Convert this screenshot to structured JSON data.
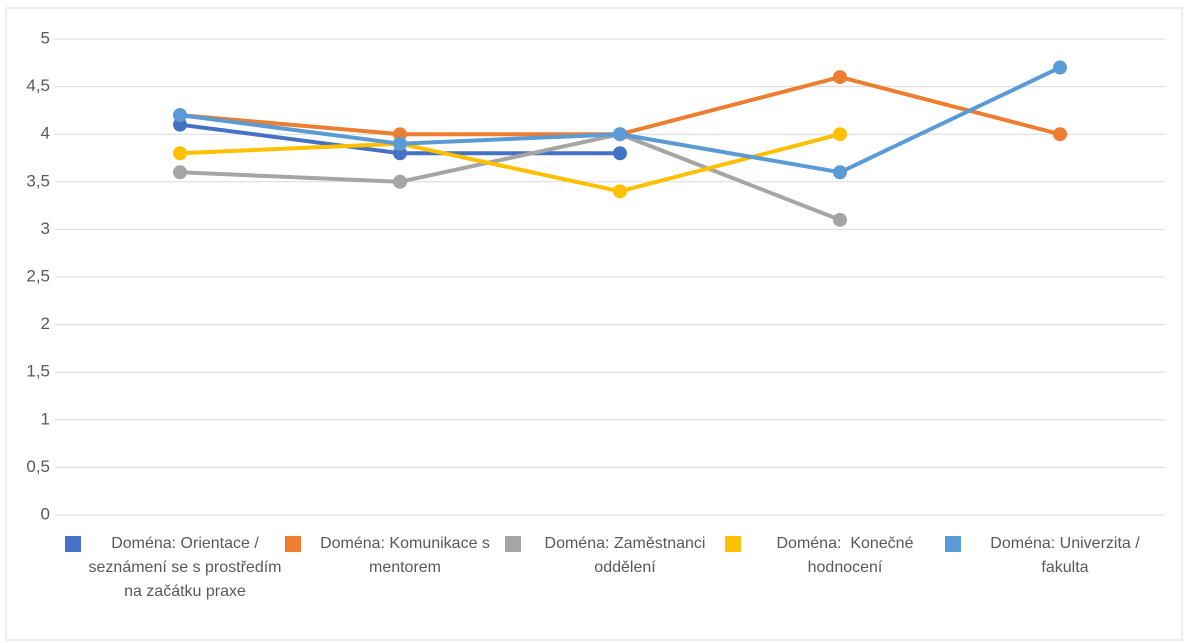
{
  "chart_data": {
    "type": "line",
    "categories": [
      null,
      null,
      null,
      null,
      null
    ],
    "series": [
      {
        "name": "Doména: Orientace / seznámení se s prostředím na začátku praxe",
        "color": "#4472c4",
        "values": [
          4.1,
          3.8,
          3.8,
          null,
          null
        ]
      },
      {
        "name": "Doména: Komunikace s mentorem",
        "color": "#ed7d31",
        "values": [
          4.2,
          4.0,
          4.0,
          4.6,
          4.0
        ]
      },
      {
        "name": "Doména: Zaměstnanci oddělení",
        "color": "#a5a5a5",
        "values": [
          3.6,
          3.5,
          4.0,
          3.1,
          null
        ]
      },
      {
        "name": "Doména:  Konečné hodnocení",
        "color": "#ffc000",
        "values": [
          3.8,
          3.9,
          3.4,
          4.0,
          null
        ]
      },
      {
        "name": "Doména: Univerzita / fakulta",
        "color": "#5b9bd5",
        "values": [
          4.2,
          3.9,
          4.0,
          3.6,
          4.7
        ]
      }
    ],
    "ylim": [
      0,
      5
    ],
    "yticks": [
      0,
      {
        "value": 0.5,
        "label": "0,5"
      },
      1,
      {
        "value": 1.5,
        "label": "1,5"
      },
      2,
      {
        "value": 2.5,
        "label": "2,5"
      },
      3,
      {
        "value": 3.5,
        "label": "3,5"
      },
      4,
      {
        "value": 4.5,
        "label": "4,5"
      },
      5
    ],
    "grid": true,
    "legend": "bottom"
  }
}
